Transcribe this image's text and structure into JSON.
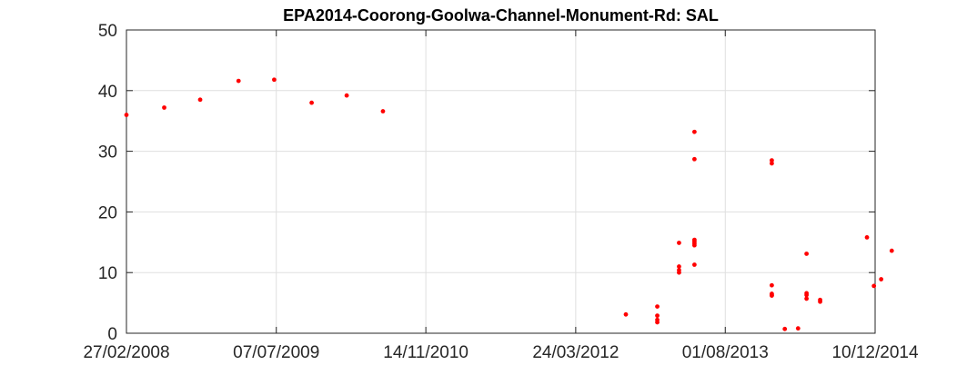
{
  "chart_data": {
    "type": "scatter",
    "title": "EPA2014-Coorong-Goolwa-Channel-Monument-Rd: SAL",
    "xlabel": "",
    "ylabel": "",
    "x_axis_type": "date",
    "xlim": [
      "27/02/2008",
      "10/12/2014"
    ],
    "ylim": [
      0,
      50
    ],
    "grid": true,
    "xticks": [
      "27/02/2008",
      "07/07/2009",
      "14/11/2010",
      "24/03/2012",
      "01/08/2013",
      "10/12/2014"
    ],
    "yticks": [
      0,
      10,
      20,
      30,
      40,
      50
    ],
    "marker_color": "#ff0000",
    "series": [
      {
        "x": [
          "27/02/2008",
          "01/07/2008",
          "28/10/2008",
          "04/03/2009",
          "30/06/2009",
          "01/11/2009",
          "25/02/2010",
          "25/06/2010",
          "06/09/2012",
          "19/12/2012",
          "19/12/2012",
          "19/12/2012",
          "19/12/2012",
          "01/03/2013",
          "01/03/2013",
          "01/03/2013",
          "01/03/2013",
          "21/04/2013",
          "21/04/2013",
          "21/04/2013",
          "21/04/2013",
          "21/04/2013",
          "21/04/2013",
          "21/04/2013",
          "02/01/2014",
          "02/01/2014",
          "02/01/2014",
          "02/01/2014",
          "02/01/2014",
          "02/01/2014",
          "14/02/2014",
          "30/03/2014",
          "27/04/2014",
          "27/04/2014",
          "27/04/2014",
          "27/04/2014",
          "11/06/2014",
          "11/06/2014",
          "13/11/2014",
          "06/12/2014",
          "30/12/2014",
          "03/02/2015"
        ],
        "y": [
          36.0,
          37.2,
          38.5,
          41.6,
          41.8,
          38.0,
          39.2,
          36.6,
          3.1,
          4.4,
          2.9,
          2.2,
          1.8,
          14.9,
          11.0,
          10.4,
          10.0,
          33.2,
          28.7,
          15.4,
          15.1,
          14.8,
          14.5,
          11.3,
          28.5,
          28.0,
          7.9,
          6.5,
          6.3,
          6.2,
          0.7,
          0.8,
          13.1,
          6.6,
          6.3,
          5.7,
          5.5,
          5.2,
          15.8,
          7.8,
          8.9,
          13.6
        ]
      }
    ]
  }
}
